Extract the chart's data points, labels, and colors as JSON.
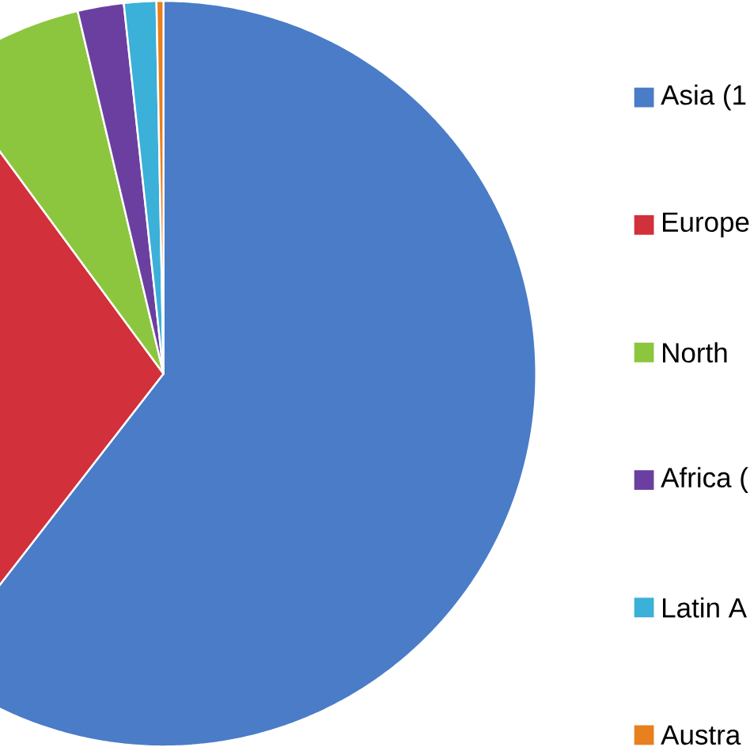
{
  "chart_data": {
    "type": "pie",
    "categories": [
      "Asia (1",
      "Europe",
      "North",
      "Africa (",
      "Latin A",
      "Austra"
    ],
    "values": [
      60.5,
      29.4,
      6.4,
      2.0,
      1.4,
      0.3
    ],
    "colors": [
      "#4a7cc8",
      "#d2303a",
      "#8cc63e",
      "#6b3fa0",
      "#3bb0d8",
      "#e8801e"
    ],
    "legend": "right"
  }
}
